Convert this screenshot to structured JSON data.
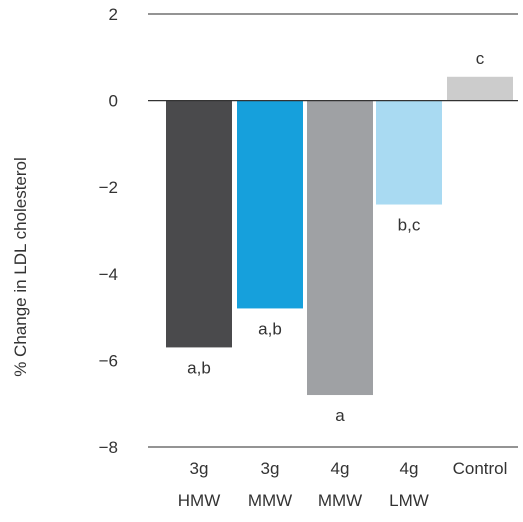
{
  "chart_data": {
    "type": "bar",
    "title": "",
    "xlabel": "",
    "ylabel": "% Change in LDL cholesterol",
    "ylim": [
      -8,
      2
    ],
    "yticks": [
      2,
      0,
      -2,
      -4,
      -6,
      -8
    ],
    "yticks_text": [
      "2",
      "0",
      "−2",
      "−4",
      "−6",
      "−8"
    ],
    "grid": false,
    "categories": [
      {
        "line1": "3g",
        "line2": "HMW"
      },
      {
        "line1": "3g",
        "line2": "MMW"
      },
      {
        "line1": "4g",
        "line2": "MMW"
      },
      {
        "line1": "4g",
        "line2": "LMW"
      },
      {
        "line1": "Control",
        "line2": ""
      }
    ],
    "values": [
      -5.7,
      -4.8,
      -6.8,
      -2.4,
      0.55
    ],
    "significance_labels": [
      "a,b",
      "a,b",
      "a",
      "b,c",
      "c"
    ],
    "colors": [
      "#4a4a4c",
      "#16a0dc",
      "#9fa1a4",
      "#a9daf2",
      "#cccccc"
    ],
    "axis_color": "#555555"
  }
}
